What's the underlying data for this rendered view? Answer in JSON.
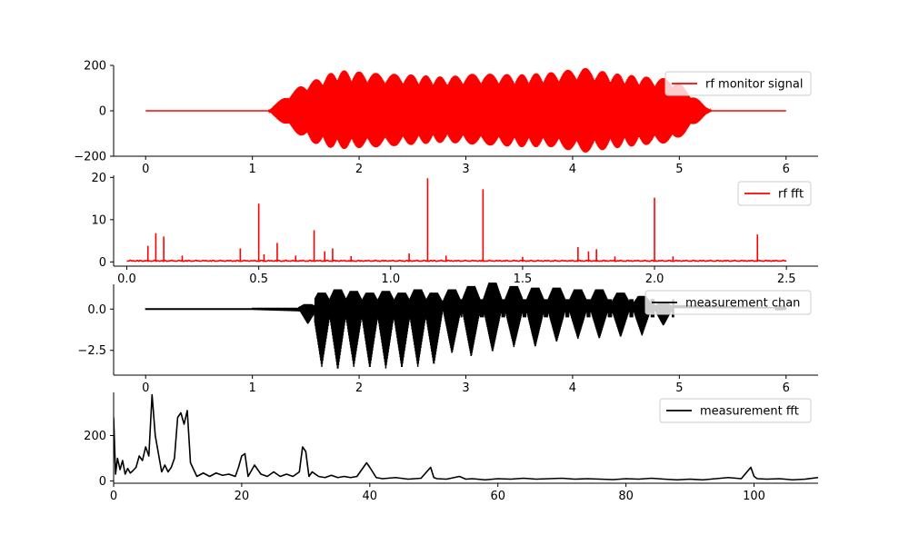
{
  "chart_data": [
    {
      "type": "line",
      "signal_kind": "amplitude-modulated oscillation",
      "series": [
        {
          "name": "rf monitor signal",
          "color": "#ff0000"
        }
      ],
      "xlim": [
        -0.3,
        6.3
      ],
      "ylim": [
        -200,
        200
      ],
      "xticks": [
        0,
        1,
        2,
        3,
        4,
        5,
        6
      ],
      "yticks": [
        -200,
        0,
        200
      ],
      "envelope": {
        "x": [
          0.0,
          1.15,
          1.2,
          1.3,
          1.45,
          1.55,
          1.7,
          1.8,
          1.95,
          2.2,
          2.5,
          2.8,
          3.1,
          3.5,
          3.8,
          4.1,
          4.4,
          4.7,
          4.95,
          5.15,
          5.3,
          6.0
        ],
        "upper": [
          0,
          0,
          25,
          60,
          110,
          130,
          160,
          180,
          175,
          165,
          160,
          150,
          165,
          160,
          170,
          190,
          165,
          150,
          140,
          60,
          0,
          0
        ],
        "lower": [
          0,
          0,
          -25,
          -60,
          -110,
          -140,
          -160,
          -170,
          -165,
          -160,
          -150,
          -140,
          -150,
          -160,
          -160,
          -185,
          -165,
          -150,
          -140,
          -60,
          0,
          0
        ]
      },
      "legend_loc": "upper right",
      "grid": false
    },
    {
      "type": "line",
      "signal_kind": "sparse spectrum",
      "series": [
        {
          "name": "rf fft",
          "color": "#ff0000"
        }
      ],
      "xlim": [
        -0.05,
        2.62
      ],
      "ylim": [
        -1,
        20.5
      ],
      "xticks": [
        0.0,
        0.5,
        1.0,
        1.5,
        2.0,
        2.5
      ],
      "yticks": [
        0,
        10,
        20
      ],
      "peaks": [
        {
          "x": 0.08,
          "y": 3.8
        },
        {
          "x": 0.11,
          "y": 6.8
        },
        {
          "x": 0.14,
          "y": 6.0
        },
        {
          "x": 0.21,
          "y": 1.5
        },
        {
          "x": 0.43,
          "y": 3.2
        },
        {
          "x": 0.5,
          "y": 13.8
        },
        {
          "x": 0.52,
          "y": 1.8
        },
        {
          "x": 0.57,
          "y": 4.5
        },
        {
          "x": 0.64,
          "y": 1.5
        },
        {
          "x": 0.71,
          "y": 7.5
        },
        {
          "x": 0.75,
          "y": 2.5
        },
        {
          "x": 0.78,
          "y": 3.2
        },
        {
          "x": 0.85,
          "y": 1.4
        },
        {
          "x": 1.07,
          "y": 2.0
        },
        {
          "x": 1.14,
          "y": 19.8
        },
        {
          "x": 1.21,
          "y": 1.5
        },
        {
          "x": 1.35,
          "y": 17.2
        },
        {
          "x": 1.5,
          "y": 1.2
        },
        {
          "x": 1.71,
          "y": 3.5
        },
        {
          "x": 1.75,
          "y": 2.5
        },
        {
          "x": 1.78,
          "y": 3.0
        },
        {
          "x": 1.85,
          "y": 1.3
        },
        {
          "x": 2.0,
          "y": 15.2
        },
        {
          "x": 2.07,
          "y": 1.3
        },
        {
          "x": 2.39,
          "y": 6.5
        }
      ],
      "legend_loc": "upper right",
      "grid": false
    },
    {
      "type": "line",
      "signal_kind": "oscillation with periodic downward pulses",
      "series": [
        {
          "name": "measurement chan",
          "color": "#000000"
        }
      ],
      "xlim": [
        -0.3,
        6.3
      ],
      "ylim": [
        -4.0,
        1.5
      ],
      "xticks": [
        0,
        1,
        2,
        3,
        4,
        5,
        6
      ],
      "yticks": [
        -2.5,
        0.0
      ],
      "pulse_centers": [
        1.52,
        1.65,
        1.8,
        1.95,
        2.1,
        2.25,
        2.4,
        2.55,
        2.7,
        2.87,
        3.05,
        3.25,
        3.45,
        3.65,
        3.85,
        4.05,
        4.25,
        4.45,
        4.65,
        4.85
      ],
      "pulse_minima": [
        -0.9,
        -3.5,
        -3.7,
        -3.5,
        -3.6,
        -3.6,
        -3.6,
        -3.5,
        -3.4,
        -2.7,
        -2.9,
        -2.6,
        -2.3,
        -2.3,
        -2.0,
        -1.8,
        -1.8,
        -1.7,
        -1.6,
        -1.0
      ],
      "pulse_maxima": [
        0.3,
        1.0,
        1.2,
        1.1,
        1.0,
        1.1,
        1.0,
        1.2,
        1.0,
        1.2,
        1.4,
        1.6,
        1.4,
        1.3,
        1.3,
        1.2,
        1.2,
        1.0,
        0.8,
        0.4
      ],
      "legend_loc": "upper right",
      "grid": false
    },
    {
      "type": "line",
      "signal_kind": "spectrum",
      "series": [
        {
          "name": "measurement fft",
          "color": "#000000"
        }
      ],
      "xlim": [
        0,
        110
      ],
      "ylim": [
        -10,
        390
      ],
      "xticks": [
        0,
        20,
        40,
        60,
        80,
        100
      ],
      "yticks": [
        0,
        200
      ],
      "x": [
        0,
        0.3,
        0.6,
        1.0,
        1.4,
        1.8,
        2.2,
        2.6,
        3.0,
        3.5,
        4.0,
        4.5,
        5.0,
        5.5,
        6.0,
        6.5,
        7.0,
        7.5,
        8.0,
        8.5,
        9.0,
        9.5,
        10.0,
        10.5,
        11.0,
        11.5,
        12.0,
        13.0,
        14.0,
        15.0,
        16.0,
        17.0,
        18.0,
        19.0,
        19.5,
        20.0,
        20.5,
        21.0,
        22.0,
        23.0,
        24.0,
        25.0,
        26.0,
        27.0,
        28.0,
        29.0,
        29.5,
        30.0,
        30.5,
        31.0,
        32.0,
        33.0,
        34.0,
        35.0,
        36.0,
        37.0,
        38.0,
        39.0,
        39.5,
        40.0,
        41.0,
        42.0,
        44.0,
        46.0,
        48.0,
        49.5,
        50.0,
        50.5,
        52.0,
        54.0,
        55.0,
        56.0,
        58.0,
        60.0,
        62.0,
        64.0,
        66.0,
        68.0,
        70.0,
        72.0,
        74.0,
        76.0,
        78.0,
        80.0,
        82.0,
        84.0,
        86.0,
        88.0,
        90.0,
        92.0,
        94.0,
        96.0,
        98.0,
        99.5,
        100.0,
        100.5,
        102.0,
        104.0,
        106.0,
        108.0,
        110.0
      ],
      "y": [
        280,
        30,
        100,
        50,
        90,
        30,
        55,
        35,
        45,
        60,
        110,
        90,
        150,
        110,
        380,
        200,
        120,
        40,
        70,
        40,
        60,
        100,
        280,
        300,
        250,
        310,
        80,
        20,
        35,
        20,
        35,
        25,
        30,
        20,
        60,
        110,
        120,
        20,
        70,
        30,
        20,
        40,
        20,
        30,
        20,
        40,
        150,
        130,
        20,
        40,
        20,
        15,
        25,
        15,
        20,
        15,
        20,
        60,
        80,
        60,
        15,
        10,
        15,
        8,
        12,
        60,
        15,
        10,
        8,
        20,
        8,
        10,
        5,
        10,
        8,
        12,
        8,
        10,
        12,
        8,
        10,
        8,
        6,
        10,
        8,
        12,
        8,
        5,
        8,
        5,
        10,
        15,
        10,
        60,
        20,
        10,
        8,
        10,
        5,
        8,
        15
      ],
      "legend_loc": "upper right",
      "grid": false
    }
  ]
}
